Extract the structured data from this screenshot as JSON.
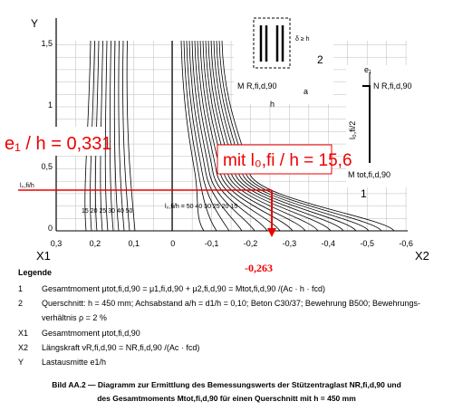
{
  "diagram": {
    "axes": {
      "y_label": "Y",
      "x1_label": "X1",
      "x2_label": "X2",
      "y_ticks": [
        "1,5",
        "1",
        "0,5",
        "0"
      ],
      "x_ticks": [
        "0,3",
        "0,2",
        "0,1",
        "0",
        "-0,1",
        "-0,2",
        "-0,3",
        "-0,4",
        "-0,5",
        "-0,6"
      ]
    },
    "annotations": {
      "eccentricity": "e₁ / h = 0,331",
      "slenderness": "mit l₀,fi / h = 15,6",
      "result": "-0,263",
      "line_label": "l₀,fi/h"
    },
    "curve_labels": {
      "left": "15 20 25 30 40 50",
      "right": "l₀,fi/h = 50 40 30 25 20 15"
    },
    "inset": {
      "marker_2": "2",
      "marker_1": "1",
      "moment_r": "M R,fi,d,90",
      "force": "N R,fi,d,90",
      "moment_tot": "M tot,fi,d,90",
      "h": "h",
      "a": "a",
      "e1": "e₁",
      "delta": "δ ≥ h",
      "l_half": "l₀,fi/2"
    }
  },
  "legend": {
    "title": "Legende",
    "items": [
      {
        "key": "1",
        "lines": [
          "Gesamtmoment μtot,fi,d,90 = μ1,fi,d,90 + μ2,fi,d,90 = Mtot,fi,d,90 /(Ac · h · fcd)"
        ]
      },
      {
        "key": "2",
        "lines": [
          "Querschnitt: h = 450 mm; Achsabstand a/h = d1/h = 0,10; Beton C30/37; Bewehrung B500; Bewehrungs-",
          "verhältnis ρ = 2 %"
        ]
      },
      {
        "key": "X1",
        "lines": [
          "Gesamtmoment μtot,fi,d,90"
        ]
      },
      {
        "key": "X2",
        "lines": [
          "Längskraft νR,fi,d,90 = NR,fi,d,90 /(Ac · fcd)"
        ]
      },
      {
        "key": "Y",
        "lines": [
          "Lastausmitte e1/h"
        ]
      }
    ]
  },
  "caption": {
    "lines": [
      "Bild AA.2 — Diagramm zur Ermittlung des Bemessungswerts der Stützentraglast NR,fi,d,90 und",
      "des Gesamtmoments Mtot,fi,d,90 für einen Querschnitt mit h = 450 mm"
    ]
  }
}
